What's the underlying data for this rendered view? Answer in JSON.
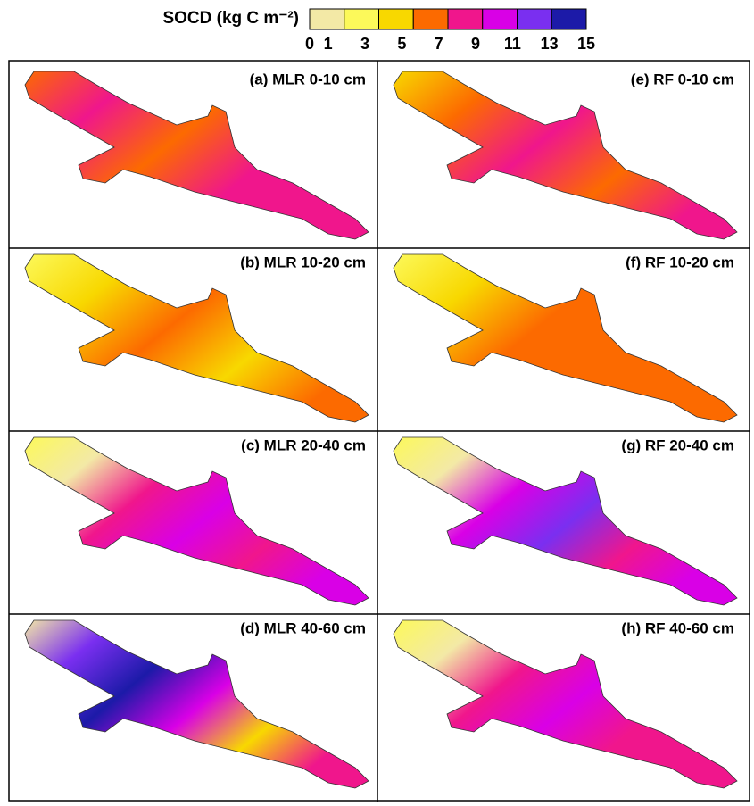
{
  "legend": {
    "title": "SOCD (kg C m⁻²)",
    "ticks": [
      0,
      1,
      3,
      5,
      7,
      9,
      11,
      13,
      15
    ],
    "colors": [
      "#f3e9a6",
      "#fcf95a",
      "#f8d800",
      "#fc6a00",
      "#f0168c",
      "#d900e6",
      "#7a2ff0",
      "#1c1aa8"
    ]
  },
  "panels": [
    {
      "label": "(a) MLR 0-10 cm"
    },
    {
      "label": "(b) MLR 10-20 cm"
    },
    {
      "label": "(c) MLR 20-40 cm"
    },
    {
      "label": "(d) MLR 40-60 cm"
    },
    {
      "label": "(e) RF 0-10 cm"
    },
    {
      "label": "(f) RF 10-20 cm"
    },
    {
      "label": "(g) RF 20-40 cm"
    },
    {
      "label": "(h) RF 40-60 cm"
    }
  ]
}
